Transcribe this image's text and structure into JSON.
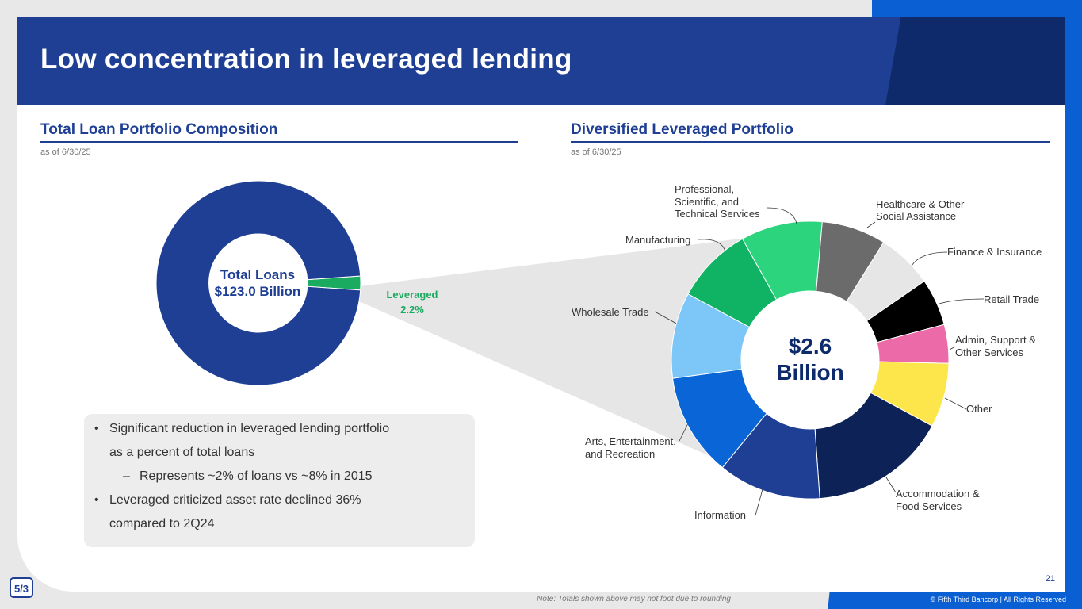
{
  "title": "Low concentration in leveraged lending",
  "left_section": {
    "title": "Total Loan Portfolio Composition",
    "asof": "as of 6/30/25"
  },
  "right_section": {
    "title": "Diversified Leveraged Portfolio",
    "asof": "as of 6/30/25"
  },
  "left_center": {
    "line1": "Total Loans",
    "line2": "$123.0 Billion"
  },
  "right_center": {
    "line1": "$2.6",
    "line2": "Billion"
  },
  "bullets": [
    "Significant reduction in leveraged lending portfolio",
    "as a percent of total loans",
    "Represents ~2% of loans vs ~8% in 2015",
    "Leveraged criticized asset rate declined 36%",
    "compared to 2Q24"
  ],
  "footer": {
    "note": "Note: Totals shown above may not foot due to rounding",
    "copyright": "© Fifth Third Bancorp | All Rights Reserved",
    "page": "21",
    "logo": "5/3"
  },
  "colors": {
    "brand_blue": "#1f3f95",
    "leveraged_green": "#1aaa60"
  },
  "chart_data": [
    {
      "type": "pie",
      "variant": "donut",
      "title": "Total Loan Portfolio Composition",
      "slices": [
        {
          "label": "Leveraged",
          "value_label": "2.2%",
          "value": 2.2,
          "color": "#1aaa60"
        },
        {
          "label": "",
          "value": 97.8,
          "color": "#1f3f95"
        }
      ]
    },
    {
      "type": "pie",
      "variant": "donut",
      "title": "Diversified Leveraged Portfolio",
      "slices": [
        {
          "label": "Healthcare & Other Social Assistance",
          "value": 7.5,
          "color": "#6b6b6b"
        },
        {
          "label": "Finance & Insurance",
          "value": 6.5,
          "color": "#e6e6e6"
        },
        {
          "label": "Retail Trade",
          "value": 5.5,
          "color": "#000000"
        },
        {
          "label": "Admin, Support & Other Services",
          "value": 4.5,
          "color": "#ec6aa8"
        },
        {
          "label": "Other",
          "value": 7.5,
          "color": "#fde54c"
        },
        {
          "label": "Accommodation & Food Services",
          "value": 16.0,
          "color": "#0d2357"
        },
        {
          "label": "Information",
          "value": 12.0,
          "color": "#1f3f95"
        },
        {
          "label": "Arts, Entertainment, and Recreation",
          "value": 12.0,
          "color": "#0a66d6"
        },
        {
          "label": "Wholesale Trade",
          "value": 10.0,
          "color": "#7cc7f8"
        },
        {
          "label": "Manufacturing",
          "value": 9.0,
          "color": "#10b363"
        },
        {
          "label": "Professional, Scientific, and Technical Services",
          "value": 9.5,
          "color": "#2dd47e"
        }
      ]
    }
  ]
}
